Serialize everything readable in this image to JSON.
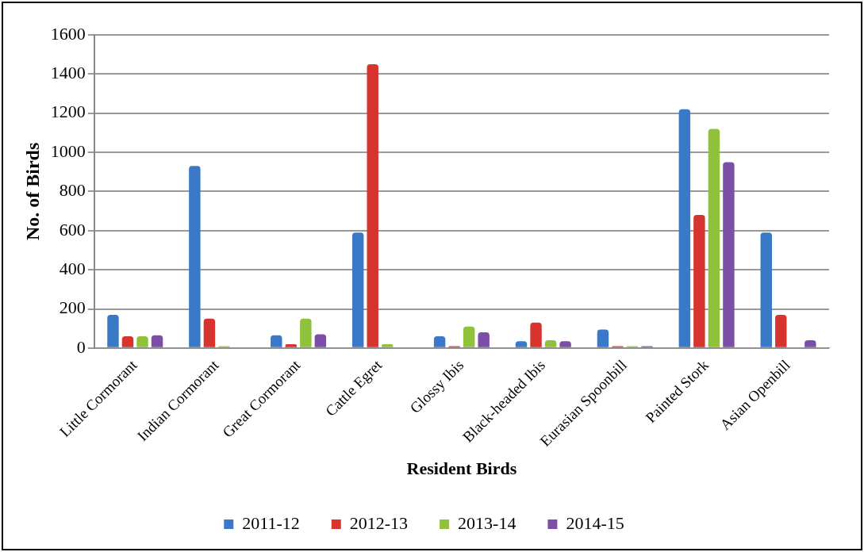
{
  "chart_data": {
    "type": "bar",
    "xlabel": "Resident Birds",
    "ylabel": "No. of Birds",
    "categories": [
      "Little Cormorant",
      "Indian Cormorant",
      "Great Cormorant",
      "Cattle Egret",
      "Glossy Ibis",
      "Black-headed Ibis",
      "Eurasian Spoonbill",
      "Painted Stork",
      "Asian Openbill"
    ],
    "series": [
      {
        "name": "2011-12",
        "color": "#3a78c8",
        "values": [
          170,
          930,
          65,
          590,
          60,
          35,
          95,
          1220,
          590
        ]
      },
      {
        "name": "2012-13",
        "color": "#d8342f",
        "values": [
          60,
          150,
          20,
          1450,
          10,
          130,
          10,
          680,
          170
        ]
      },
      {
        "name": "2013-14",
        "color": "#8fc23a",
        "values": [
          60,
          10,
          150,
          20,
          110,
          40,
          10,
          1120,
          0
        ]
      },
      {
        "name": "2014-15",
        "color": "#7b4fa8",
        "values": [
          65,
          5,
          70,
          5,
          80,
          35,
          10,
          950,
          40
        ]
      }
    ],
    "ylim": [
      0,
      1600
    ],
    "yticks": [
      0,
      200,
      400,
      600,
      800,
      1000,
      1200,
      1400,
      1600
    ],
    "grid": "y",
    "legend": "bottom"
  }
}
